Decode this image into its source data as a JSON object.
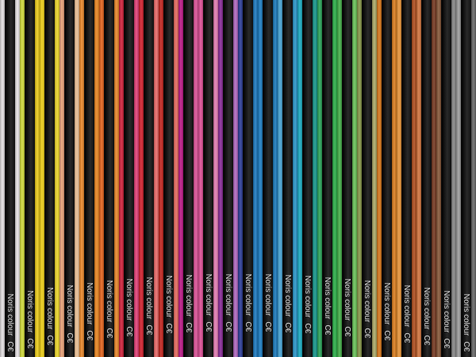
{
  "brand_text": "Noris colour",
  "ce_mark": "C€",
  "pencils": [
    {
      "left": "#e8e4e6",
      "right": "#ece8ea"
    },
    {
      "left": "#d6e03a",
      "right": "#f2d21a"
    },
    {
      "left": "#f4d416",
      "right": "#f3dc2a"
    },
    {
      "left": "#efa57a",
      "right": "#f3c79a"
    },
    {
      "left": "#ef8a2a",
      "right": "#f18a22"
    },
    {
      "left": "#e8641c",
      "right": "#ef8a2a"
    },
    {
      "left": "#d4203a",
      "right": "#e8427a"
    },
    {
      "left": "#d8202e",
      "right": "#ef6c6a"
    },
    {
      "left": "#c8241e",
      "right": "#ec6e60"
    },
    {
      "left": "#c0188a",
      "right": "#e0549a"
    },
    {
      "left": "#e4509a",
      "right": "#ea80b8"
    },
    {
      "left": "#8a2a9a",
      "right": "#b46ac4"
    },
    {
      "left": "#2a3c9a",
      "right": "#1c7cc4"
    },
    {
      "left": "#1c80c8",
      "right": "#1a7cc0"
    },
    {
      "left": "#48a8dc",
      "right": "#2a9ad0"
    },
    {
      "left": "#1ab0c8",
      "right": "#169a90"
    },
    {
      "left": "#2aa85a",
      "right": "#2cb44a"
    },
    {
      "left": "#46b44a",
      "right": "#6cc85a"
    },
    {
      "left": "#8a9a4a",
      "right": "#b0ae6a"
    },
    {
      "left": "#de7a1a",
      "right": "#e0801e"
    },
    {
      "left": "#f09a3a",
      "right": "#b4501e"
    },
    {
      "left": "#d87840",
      "right": "#7a3a22"
    },
    {
      "left": "#8a5a3a",
      "right": "#8a8a8a"
    },
    {
      "left": "#a0a0a0",
      "right": "#6a6a6a"
    }
  ]
}
